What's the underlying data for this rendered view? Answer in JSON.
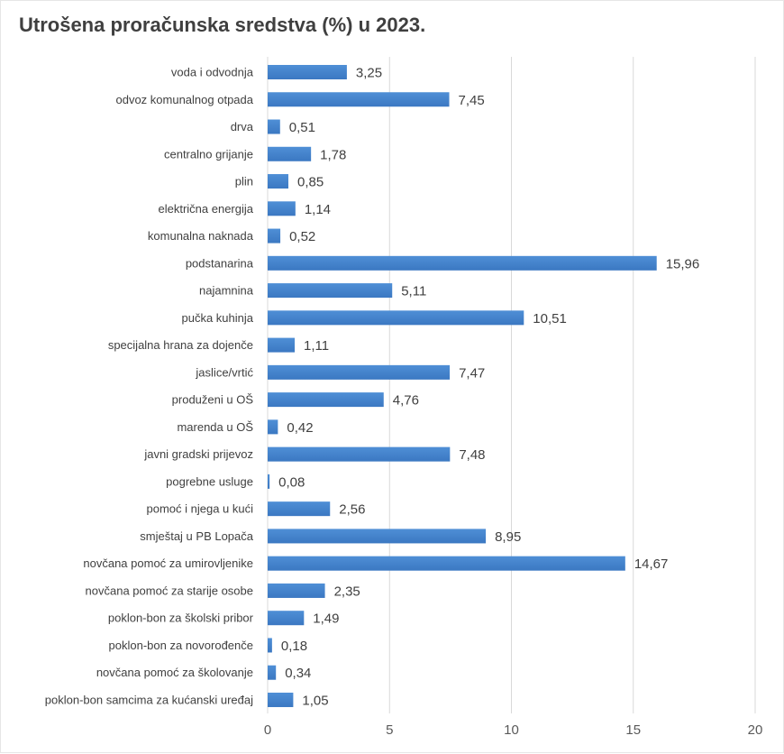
{
  "title": "Utrošena proračunska sredstva (%) u 2023.",
  "colors": {
    "bar": "#4f8fd6",
    "bar_dark": "#3b78c2",
    "grid": "#d9d9d9",
    "text": "#404040"
  },
  "chart_data": {
    "type": "bar",
    "orientation": "horizontal",
    "title": "Utrošena proračunska sredstva (%) u 2023.",
    "xlim": [
      0,
      20
    ],
    "xticks": [
      0,
      5,
      10,
      15,
      20
    ],
    "grid": true,
    "categories": [
      "voda i odvodnja",
      "odvoz komunalnog otpada",
      "drva",
      "centralno grijanje",
      "plin",
      "električna energija",
      "komunalna naknada",
      "podstanarina",
      "najamnina",
      "pučka kuhinja",
      "specijalna hrana za dojenče",
      "jaslice/vrtić",
      "produženi u OŠ",
      "marenda u OŠ",
      "javni gradski prijevoz",
      "pogrebne usluge",
      "pomoć i njega u kući",
      "smještaj u PB Lopača",
      "novčana pomoć za umirovljenike",
      "novčana pomoć za starije osobe",
      "poklon-bon za školski pribor",
      "poklon-bon za novorođenče",
      "novčana pomoć za školovanje",
      "poklon-bon samcima za kućanski uređaj"
    ],
    "values": [
      3.25,
      7.45,
      0.51,
      1.78,
      0.85,
      1.14,
      0.52,
      15.96,
      5.11,
      10.51,
      1.11,
      7.47,
      4.76,
      0.42,
      7.48,
      0.08,
      2.56,
      8.95,
      14.67,
      2.35,
      1.49,
      0.18,
      0.34,
      1.05
    ],
    "value_labels": [
      "3,25",
      "7,45",
      "0,51",
      "1,78",
      "0,85",
      "1,14",
      "0,52",
      "15,96",
      "5,11",
      "10,51",
      "1,11",
      "7,47",
      "4,76",
      "0,42",
      "7,48",
      "0,08",
      "2,56",
      "8,95",
      "14,67",
      "2,35",
      "1,49",
      "0,18",
      "0,34",
      "1,05"
    ]
  }
}
